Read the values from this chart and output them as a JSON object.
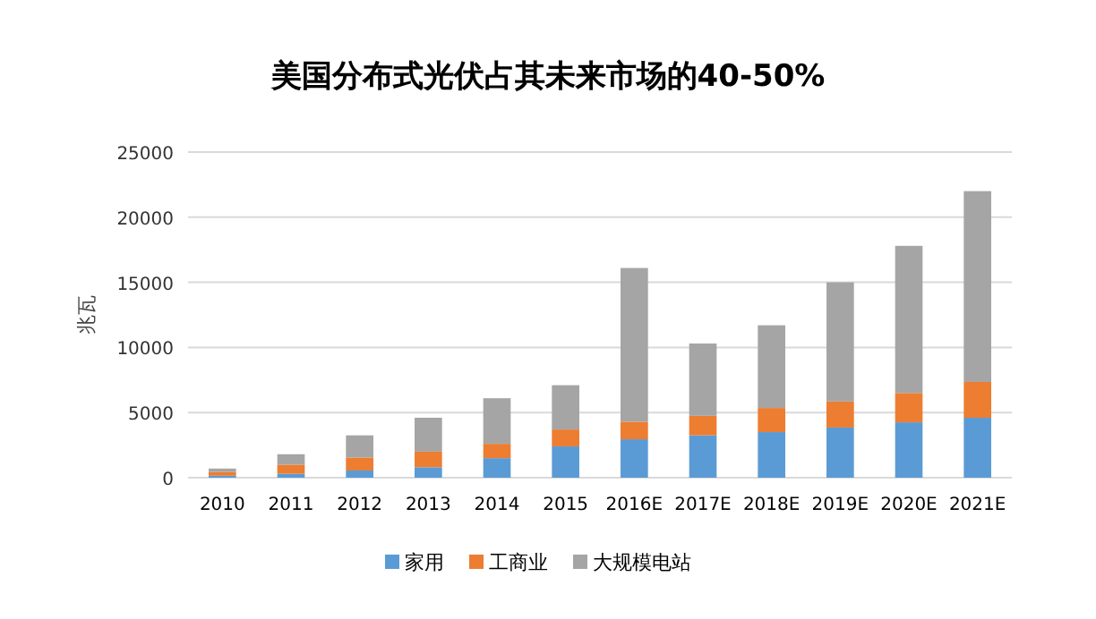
{
  "chart_data": {
    "type": "bar",
    "title": "美国分布式光伏占其未来市场的40-50%",
    "ylabel": "兆瓦",
    "stacked": true,
    "categories": [
      "2010",
      "2011",
      "2012",
      "2013",
      "2014",
      "2015",
      "2016E",
      "2017E",
      "2018E",
      "2019E",
      "2020E",
      "2021E"
    ],
    "series": [
      {
        "name": "家用",
        "color": "#5b9bd5",
        "values": [
          150,
          300,
          550,
          800,
          1500,
          2400,
          2950,
          3250,
          3500,
          3850,
          4250,
          4600
        ]
      },
      {
        "name": "工商业",
        "color": "#ed7d31",
        "values": [
          300,
          700,
          1000,
          1200,
          1100,
          1300,
          1350,
          1500,
          1850,
          2000,
          2250,
          2750
        ]
      },
      {
        "name": "大规模电站",
        "color": "#a5a5a5",
        "values": [
          250,
          800,
          1700,
          2600,
          3500,
          3400,
          11800,
          5550,
          6350,
          9150,
          11300,
          14650
        ]
      }
    ],
    "ylim": [
      0,
      25000
    ],
    "yticks": [
      0,
      5000,
      10000,
      15000,
      20000,
      25000
    ],
    "grid": "y",
    "legend": "bottom"
  }
}
